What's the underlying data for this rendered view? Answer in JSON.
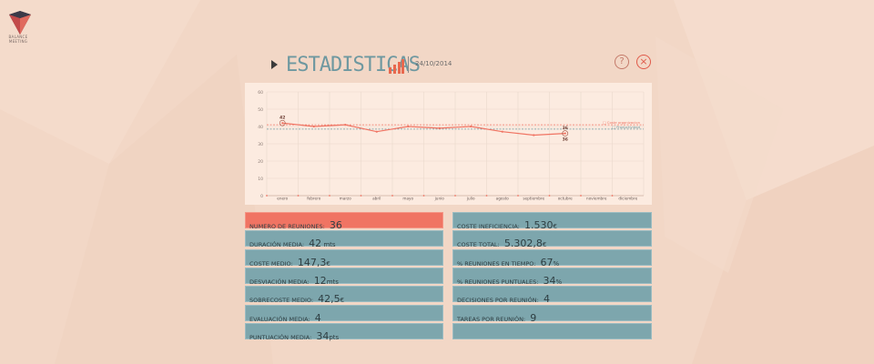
{
  "app": {
    "logo_text_line1": "BALANCE",
    "logo_text_line2": "MEETING",
    "title": "ESTADISTICAS",
    "date": "24/10/2014",
    "help_symbol": "?",
    "close_symbol": "×"
  },
  "colors": {
    "accent": "#f07463",
    "panel": "#7da6ad",
    "title": "#6e98a0",
    "line_red": "#f07463",
    "line_teal": "#6e98a0"
  },
  "chart_data": {
    "type": "line",
    "categories": [
      "enero",
      "febrero",
      "marzo",
      "abril",
      "mayo",
      "junio",
      "julio",
      "agosto",
      "septiembre",
      "octubre",
      "noviembre",
      "diciembre"
    ],
    "y_ticks": [
      "0",
      "10",
      "20",
      "30",
      "40",
      "50",
      "60"
    ],
    "ylim": [
      0,
      60
    ],
    "series": [
      {
        "values": [
          42,
          40,
          41,
          37,
          40,
          39,
          40,
          37,
          35,
          36,
          null,
          null
        ]
      }
    ],
    "reference_lines": [
      {
        "name": "Coste organizacion",
        "value": 41,
        "color": "#f07463"
      },
      {
        "name": "Productividad",
        "value": 38.5,
        "color": "#6e98a0"
      }
    ],
    "markers": [
      {
        "category": "enero",
        "top_label": "42",
        "bottom_label": "",
        "value": 42
      },
      {
        "category": "octubre",
        "top_label": "36",
        "bottom_label": "36",
        "value": 36
      }
    ],
    "grid": true
  },
  "stats": {
    "left": [
      {
        "label": "Numero de reuniones:",
        "value": "36",
        "unit": ""
      },
      {
        "label": "Duración media:",
        "value": "42",
        "unit": " mts"
      },
      {
        "label": "Coste medio:",
        "value": "147,3",
        "unit": "€"
      },
      {
        "label": "Desviación media:",
        "value": "12",
        "unit": "mts"
      },
      {
        "label": "Sobrecoste medio:",
        "value": "42,5",
        "unit": "€"
      },
      {
        "label": "Evaluación media:",
        "value": "4",
        "unit": ""
      },
      {
        "label": "Puntuación media:",
        "value": "34",
        "unit": "pts"
      }
    ],
    "right": [
      {
        "label": "Coste ineficiencia:",
        "value": "1.530",
        "unit": "€"
      },
      {
        "label": "Coste total:",
        "value": "5.302,8",
        "unit": "€"
      },
      {
        "label": "% reuniones en tiempo:",
        "value": "67",
        "unit": "%"
      },
      {
        "label": "% reuniones puntuales:",
        "value": "34",
        "unit": "%"
      },
      {
        "label": "Decisiones por reunión:",
        "value": "4",
        "unit": ""
      },
      {
        "label": "Tareas por reunión:",
        "value": "9",
        "unit": ""
      },
      {
        "label": "",
        "value": "",
        "unit": ""
      }
    ]
  }
}
